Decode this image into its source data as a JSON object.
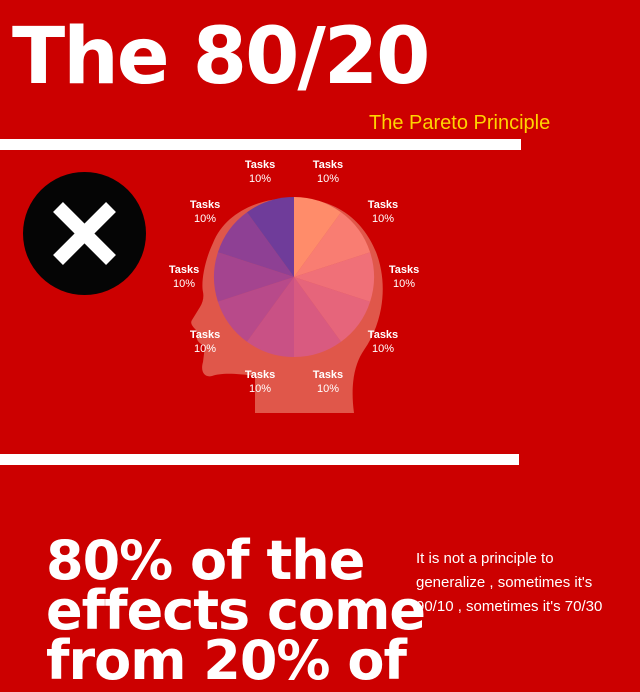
{
  "header": {
    "title": "The 80/20",
    "subtitle": "The Pareto Principle"
  },
  "icons": {
    "x_badge": "close-icon",
    "head": "head-silhouette-icon"
  },
  "colors": {
    "background": "#cc0000",
    "subtitle": "#ffd400",
    "head": "#e0574a"
  },
  "chart_data": {
    "type": "pie",
    "slices": [
      {
        "label": "Tasks",
        "value": 10,
        "value_label": "10%",
        "color": "#ff8c6a"
      },
      {
        "label": "Tasks",
        "value": 10,
        "value_label": "10%",
        "color": "#f97d72"
      },
      {
        "label": "Tasks",
        "value": 10,
        "value_label": "10%",
        "color": "#f07078"
      },
      {
        "label": "Tasks",
        "value": 10,
        "value_label": "10%",
        "color": "#e6657b"
      },
      {
        "label": "Tasks",
        "value": 10,
        "value_label": "10%",
        "color": "#d95a80"
      },
      {
        "label": "Tasks",
        "value": 10,
        "value_label": "10%",
        "color": "#c95185"
      },
      {
        "label": "Tasks",
        "value": 10,
        "value_label": "10%",
        "color": "#b84a8a"
      },
      {
        "label": "Tasks",
        "value": 10,
        "value_label": "10%",
        "color": "#a4448f"
      },
      {
        "label": "Tasks",
        "value": 10,
        "value_label": "10%",
        "color": "#8e4094"
      },
      {
        "label": "Tasks",
        "value": 10,
        "value_label": "10%",
        "color": "#6f3c9a"
      }
    ]
  },
  "body": {
    "headline": "80% of the effects come from 20% of",
    "note": "It is not a principle to generalize , sometimes it's 90/10 , sometimes it's 70/30"
  }
}
